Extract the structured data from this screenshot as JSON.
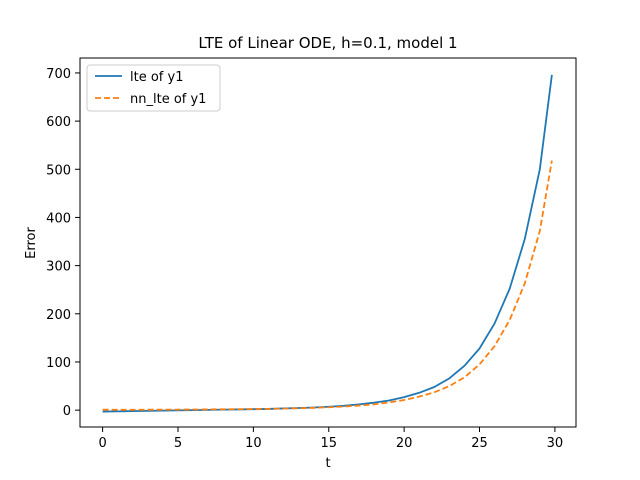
{
  "chart_data": {
    "type": "line",
    "title": "LTE of Linear ODE, h=0.1, model 1",
    "xlabel": "t",
    "ylabel": "Error",
    "xlim": [
      -1.5,
      31.4
    ],
    "ylim": [
      -35,
      731
    ],
    "xticks": [
      0,
      5,
      10,
      15,
      20,
      25,
      30
    ],
    "yticks": [
      0,
      100,
      200,
      300,
      400,
      500,
      600,
      700
    ],
    "grid": false,
    "legend_position": "top-left",
    "series": [
      {
        "name": "lte of y1",
        "color": "#1f77b4",
        "dash": "solid",
        "x": [
          0,
          1,
          2,
          3,
          4,
          5,
          6,
          7,
          8,
          9,
          10,
          11,
          12,
          13,
          14,
          15,
          16,
          17,
          18,
          19,
          20,
          21,
          22,
          23,
          24,
          25,
          26,
          27,
          28,
          29,
          29.8
        ],
        "y": [
          -3,
          -2.5,
          -2,
          -1.5,
          -1,
          -0.5,
          0,
          0.5,
          1,
          1.5,
          2,
          2.5,
          3.5,
          4.5,
          5.5,
          7,
          9,
          12,
          15.5,
          20,
          27,
          36,
          48,
          66,
          92,
          128,
          180,
          252,
          355,
          500,
          696
        ]
      },
      {
        "name": "nn_lte of y1",
        "color": "#ff7f0e",
        "dash": "dashed",
        "x": [
          0,
          1,
          2,
          3,
          4,
          5,
          6,
          7,
          8,
          9,
          10,
          11,
          12,
          13,
          14,
          15,
          16,
          17,
          18,
          19,
          20,
          21,
          22,
          23,
          24,
          25,
          26,
          27,
          28,
          29,
          29.8
        ],
        "y": [
          1,
          0.8,
          0.8,
          0.9,
          1,
          1.1,
          1.3,
          1.5,
          1.8,
          2,
          2.3,
          2.7,
          3.2,
          3.9,
          4.8,
          6,
          7.5,
          9.5,
          12,
          16,
          21,
          28,
          37,
          50,
          68,
          95,
          133,
          187,
          263,
          372,
          518
        ]
      }
    ]
  }
}
